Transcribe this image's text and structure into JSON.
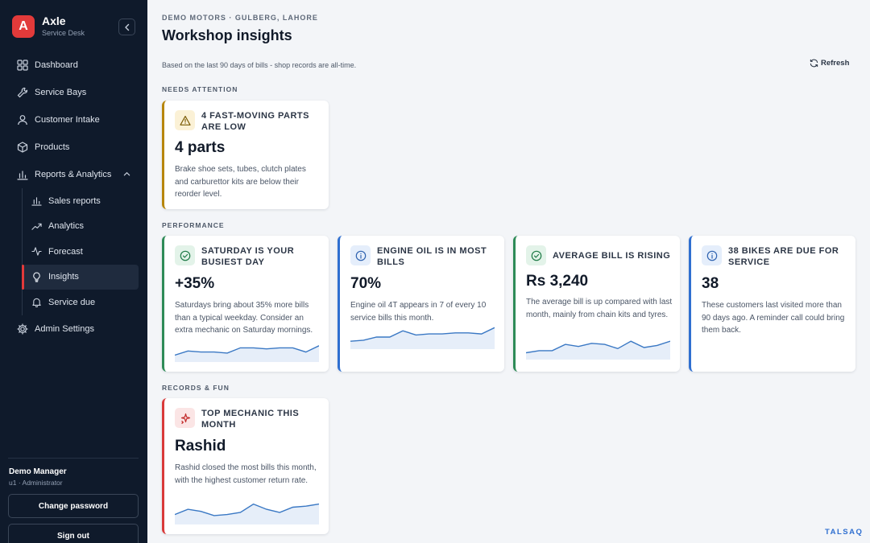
{
  "app": {
    "logo_letter": "A",
    "name": "Axle",
    "subtitle": "Service Desk"
  },
  "sidebar": {
    "items": [
      {
        "label": "Dashboard",
        "icon": "grid-icon"
      },
      {
        "label": "Service Bays",
        "icon": "wrench-icon"
      },
      {
        "label": "Customer Intake",
        "icon": "user-icon"
      },
      {
        "label": "Products",
        "icon": "box-icon"
      },
      {
        "label": "Reports & Analytics",
        "icon": "bar-chart-icon",
        "expanded": true
      }
    ],
    "subitems": [
      {
        "label": "Sales reports",
        "icon": "bar-chart-icon"
      },
      {
        "label": "Analytics",
        "icon": "trend-icon"
      },
      {
        "label": "Forecast",
        "icon": "pulse-icon"
      },
      {
        "label": "Insights",
        "icon": "lightbulb-icon",
        "active": true
      },
      {
        "label": "Service due",
        "icon": "bell-icon"
      }
    ],
    "admin": {
      "label": "Admin Settings",
      "icon": "gear-icon"
    },
    "user": {
      "name": "Demo Manager",
      "role": "u1 · Administrator"
    },
    "change_password": "Change password",
    "sign_out": "Sign out"
  },
  "header": {
    "shop": "DEMO MOTORS · GULBERG, LAHORE",
    "title": "Workshop insights",
    "basis": "Based on the last 90 days of bills - shop records are all-time.",
    "refresh": "Refresh"
  },
  "sections": {
    "attention": "NEEDS ATTENTION",
    "performance": "PERFORMANCE",
    "records": "RECORDS & FUN"
  },
  "colors": {
    "amber": "#b7860b",
    "green": "#2e8b57",
    "blue": "#2f6fd0",
    "red": "#d93a3a",
    "sparkline": "#3a78c4"
  },
  "cards": {
    "low_parts": {
      "title": "4 FAST-MOVING PARTS ARE LOW",
      "value": "4 parts",
      "desc": "Brake shoe sets, tubes, clutch plates and carburettor kits are below their reorder level.",
      "icon": "warning-icon"
    },
    "saturday": {
      "title": "SATURDAY IS YOUR BUSIEST DAY",
      "value": "+35%",
      "desc": "Saturdays bring about 35% more bills than a typical weekday. Consider an extra mechanic on Saturday mornings.",
      "icon": "check-circle-icon",
      "trend": [
        5,
        9,
        8,
        8,
        7,
        12,
        12,
        11,
        12,
        12,
        8,
        14
      ]
    },
    "engine_oil": {
      "title": "ENGINE OIL IS IN MOST BILLS",
      "value": "70%",
      "desc": "Engine oil 4T appears in 7 of every 10 service bills this month.",
      "icon": "info-icon",
      "trend": [
        6,
        7,
        10,
        10,
        16,
        12,
        13,
        13,
        14,
        14,
        13,
        19
      ]
    },
    "avg_bill": {
      "title": "AVERAGE BILL IS RISING",
      "value": "Rs 3,240",
      "desc": "The average bill is up compared with last month, mainly from chain kits and tyres.",
      "icon": "check-circle-icon",
      "trend": [
        5,
        7,
        7,
        13,
        11,
        14,
        13,
        9,
        16,
        10,
        12,
        16
      ]
    },
    "bikes_due": {
      "title": "38 BIKES ARE DUE FOR SERVICE",
      "value": "38",
      "desc": "These customers last visited more than 90 days ago. A reminder call could bring them back.",
      "icon": "info-icon"
    },
    "top_mechanic": {
      "title": "TOP MECHANIC THIS MONTH",
      "value": "Rashid",
      "desc": "Rashid closed the most bills this month, with the highest customer return rate.",
      "icon": "sparkle-icon",
      "trend": [
        8,
        13,
        11,
        7,
        8,
        10,
        18,
        13,
        10,
        15,
        16,
        18
      ]
    }
  },
  "watermark": "TALSAQ"
}
